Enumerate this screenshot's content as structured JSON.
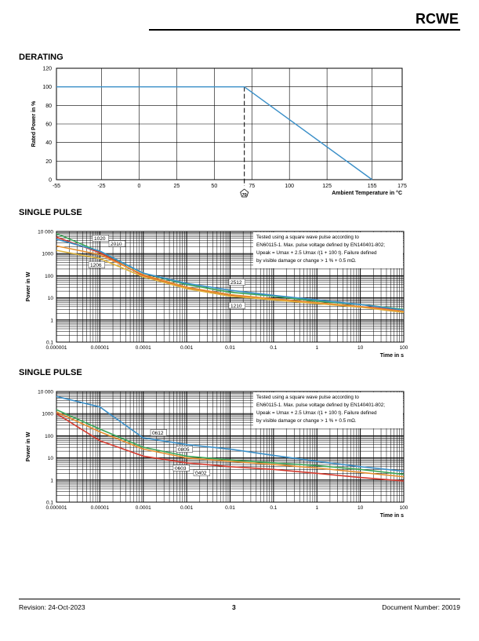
{
  "header": {
    "brand": "RCWE"
  },
  "sections": {
    "derating": "DERATING",
    "pulse1": "SINGLE PULSE",
    "pulse2": "SINGLE PULSE"
  },
  "footer": {
    "revision": "Revision: 24-Oct-2023",
    "page": "3",
    "docnum": "Document Number: 20019"
  },
  "chart_data": [
    {
      "type": "line",
      "title": "DERATING",
      "xlabel": "Ambient Temperature in °C",
      "ylabel": "Rated Power in %",
      "xlim": [
        -55,
        175
      ],
      "ylim": [
        0,
        120
      ],
      "xticks": [
        -55,
        -25,
        0,
        25,
        50,
        75,
        100,
        125,
        155,
        175
      ],
      "yticks": [
        0,
        20,
        40,
        60,
        80,
        100,
        120
      ],
      "marker": {
        "x": 70,
        "label": "70"
      },
      "grid": true,
      "color": "#3a8fc8",
      "series": [
        {
          "x": [
            -55,
            70,
            155
          ],
          "y": [
            100,
            100,
            0
          ]
        }
      ]
    },
    {
      "type": "line",
      "title": "SINGLE PULSE",
      "xscale": "log",
      "yscale": "log",
      "xlabel": "Time in s",
      "ylabel": "Power in W",
      "xlim": [
        1e-06,
        100
      ],
      "ylim": [
        0.1,
        10000
      ],
      "xticks": [
        "0.000001",
        "0.00001",
        "0.0001",
        "0.001",
        "0.01",
        "0.1",
        "1",
        "10",
        "100"
      ],
      "yticks": [
        "0.1",
        "1",
        "10",
        "100",
        "1000",
        "10 000"
      ],
      "grid": true,
      "note": [
        "Tested using a square wave pulse according to",
        "EN60115-1. Max. pulse voltage defined by EN140401-802;",
        "Upeak = Umax + 2.5 Umax /(1 + 100 t). Failure defined",
        "by visible damage or change > 1 % + 0.5 mΩ."
      ],
      "labels": [
        "1020",
        "2010",
        "1206",
        "2512",
        "1210"
      ],
      "series": [
        {
          "name": "1020",
          "color": "#3aa657",
          "x": [
            1e-06,
            1e-05,
            0.0001,
            0.001,
            0.01,
            0.1,
            1,
            10,
            100
          ],
          "y": [
            8000,
            1200,
            130,
            40,
            18,
            12,
            7,
            5,
            3
          ]
        },
        {
          "name": "2010",
          "color": "#d63b2f",
          "x": [
            1e-06,
            1e-05,
            0.0001,
            0.001,
            0.01,
            0.1,
            1,
            10,
            100
          ],
          "y": [
            5500,
            1100,
            100,
            28,
            13,
            9,
            6,
            4,
            2.8
          ]
        },
        {
          "name": "1206",
          "color": "#e0b43a",
          "x": [
            1e-06,
            1e-05,
            0.0001,
            0.001,
            0.01,
            0.1,
            1,
            10,
            100
          ],
          "y": [
            1400,
            600,
            90,
            26,
            12,
            8,
            5.5,
            3.8,
            2.2
          ]
        },
        {
          "name": "2512",
          "color": "#3a8fc8",
          "x": [
            1e-06,
            1e-05,
            0.0001,
            0.001,
            0.01,
            0.1,
            1,
            10,
            100
          ],
          "y": [
            4500,
            1300,
            130,
            45,
            22,
            13,
            8,
            5,
            2.8
          ]
        },
        {
          "name": "1210",
          "color": "#e8902f",
          "x": [
            1e-06,
            1e-05,
            0.0001,
            0.001,
            0.01,
            0.1,
            1,
            10,
            100
          ],
          "y": [
            2200,
            900,
            110,
            30,
            14,
            9,
            6,
            4,
            2.4
          ]
        }
      ]
    },
    {
      "type": "line",
      "title": "SINGLE PULSE",
      "xscale": "log",
      "yscale": "log",
      "xlabel": "Time in s",
      "ylabel": "Power in W",
      "xlim": [
        1e-06,
        100
      ],
      "ylim": [
        0.1,
        10000
      ],
      "xticks": [
        "0.000001",
        "0.00001",
        "0.0001",
        "0.001",
        "0.01",
        "0.1",
        "1",
        "10",
        "100"
      ],
      "yticks": [
        "0.1",
        "1",
        "10",
        "100",
        "1000",
        "10 000"
      ],
      "grid": true,
      "note": [
        "Tested using a square wave pulse according to",
        "EN60115-1. Max. pulse voltage defined by EN140401-802;",
        "Upeak = Umax + 2.5 Umax /(1 + 100 t). Failure defined",
        "by visible damage or change > 1 % + 0.5 mΩ."
      ],
      "labels": [
        "0612",
        "0805",
        "0603",
        "0402"
      ],
      "series": [
        {
          "name": "0612",
          "color": "#3a8fc8",
          "x": [
            1e-06,
            1e-05,
            0.0001,
            0.001,
            0.01,
            0.1,
            1,
            10,
            100
          ],
          "y": [
            6000,
            2000,
            80,
            40,
            25,
            13,
            7,
            4,
            2.5
          ]
        },
        {
          "name": "0805",
          "color": "#3aa657",
          "x": [
            1e-06,
            1e-05,
            0.0001,
            0.001,
            0.01,
            0.1,
            1,
            10,
            100
          ],
          "y": [
            1500,
            200,
            30,
            12,
            8,
            6,
            4.5,
            3,
            1.8
          ]
        },
        {
          "name": "0603",
          "color": "#e8902f",
          "x": [
            1e-06,
            1e-05,
            0.0001,
            0.001,
            0.01,
            0.1,
            1,
            10,
            100
          ],
          "y": [
            1200,
            150,
            25,
            10,
            7,
            5,
            3.5,
            2.2,
            1.4
          ]
        },
        {
          "name": "0402",
          "color": "#d63b2f",
          "x": [
            1e-06,
            1e-05,
            0.0001,
            0.001,
            0.01,
            0.1,
            1,
            10,
            100
          ],
          "y": [
            1000,
            60,
            12,
            6,
            4,
            3,
            2,
            1.3,
            0.9
          ]
        }
      ]
    }
  ]
}
